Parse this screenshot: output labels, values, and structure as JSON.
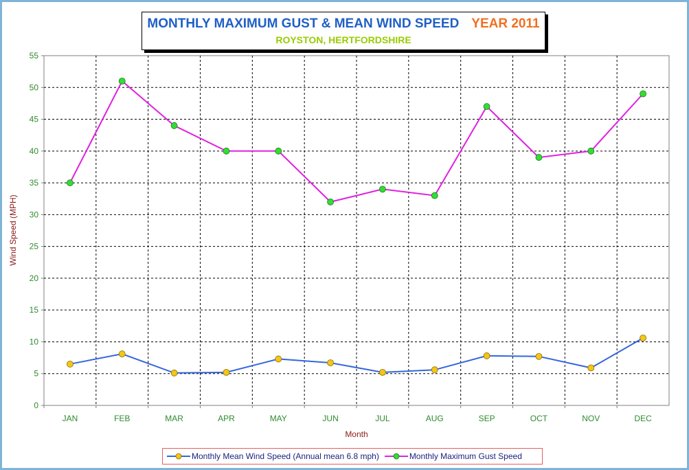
{
  "chart_data": {
    "type": "line",
    "title": "MONTHLY MAXIMUM GUST & MEAN WIND SPEED",
    "title_year": "YEAR 2011",
    "subtitle": "ROYSTON, HERTFORDSHIRE",
    "xlabel": "Month",
    "ylabel": "Wind Speed (MPH)",
    "categories": [
      "JAN",
      "FEB",
      "MAR",
      "APR",
      "MAY",
      "JUN",
      "JUL",
      "AUG",
      "SEP",
      "OCT",
      "NOV",
      "DEC"
    ],
    "ylim": [
      0,
      55
    ],
    "yticks": [
      "0",
      "5",
      "10",
      "15",
      "20",
      "25",
      "30",
      "35",
      "40",
      "45",
      "50",
      "55"
    ],
    "grid": true,
    "legend_position": "bottom",
    "series": [
      {
        "name": "Monthly Mean Wind Speed (Annual mean 6.8 mph)",
        "line_color": "#3366dd",
        "marker_color": "#f5c518",
        "values": [
          6.5,
          8.1,
          5.1,
          5.2,
          7.3,
          6.7,
          5.2,
          5.6,
          7.8,
          7.7,
          5.9,
          10.6
        ]
      },
      {
        "name": "Monthly Maximum Gust Speed",
        "line_color": "#e020e0",
        "marker_color": "#33dd33",
        "values": [
          35,
          51,
          44,
          40,
          40,
          32,
          34,
          33,
          47,
          39,
          40,
          49
        ]
      }
    ]
  }
}
